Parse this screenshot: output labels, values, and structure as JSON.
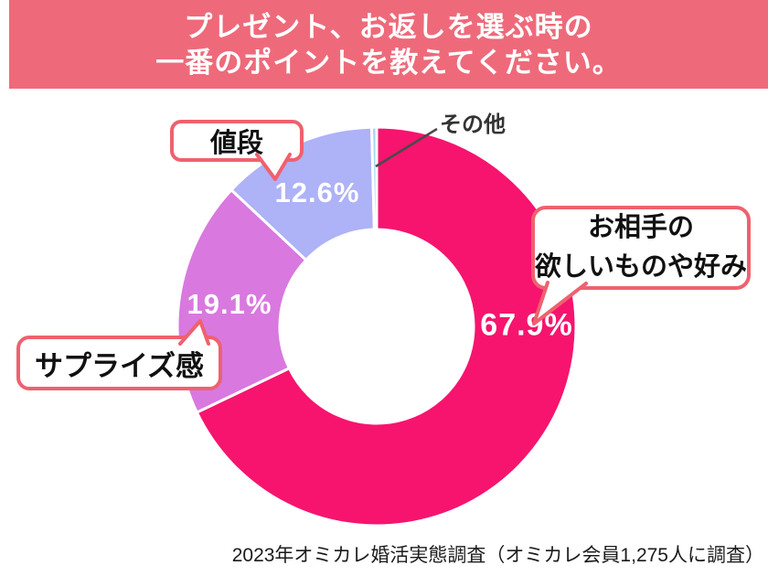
{
  "header": {
    "title_line1": "プレゼント、お返しを選ぶ時の",
    "title_line2": "一番のポイントを教えてください。",
    "bg_color": "#ee6a7a",
    "text_color": "#ffffff"
  },
  "chart_data": {
    "type": "pie",
    "title": "プレゼント、お返しを選ぶ時の一番のポイントを教えてください。",
    "donut": true,
    "start_angle": "top",
    "direction": "clockwise",
    "legend_position": "callout-bubbles",
    "segments": [
      {
        "label": "お相手の欲しいものや好み",
        "value": 67.9,
        "display": "67.9%",
        "color": "#f6146e"
      },
      {
        "label": "サプライズ感",
        "value": 19.1,
        "display": "19.1%",
        "color": "#d978df"
      },
      {
        "label": "値段",
        "value": 12.6,
        "display": "12.6%",
        "color": "#aeb2f6"
      },
      {
        "label": "その他",
        "value": 0.4,
        "display": "",
        "color": "#a3d7f0"
      }
    ],
    "separator_color": "#ffffff"
  },
  "callouts": {
    "main_line1": "お相手の",
    "main_line2": "欲しいものや好み",
    "surprise": "サプライズ感",
    "price": "値段",
    "other": "その他",
    "border_color": "#ef616e"
  },
  "footer": {
    "source": "2023年オミカレ婚活実態調査（オミカレ会員1,275人に調査）"
  }
}
